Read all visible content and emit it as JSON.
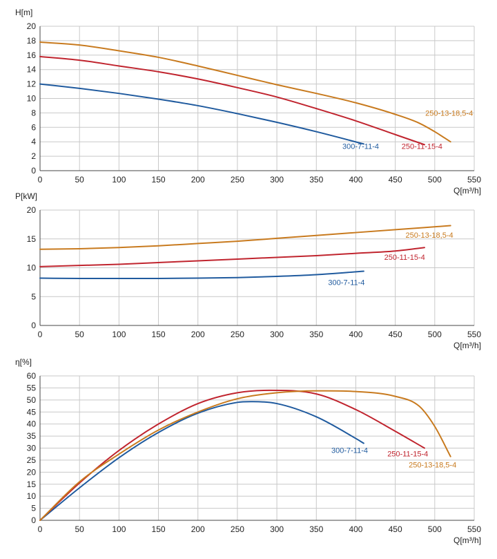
{
  "colors": {
    "300-7-11-4": "#1f5a9e",
    "250-11-15-4": "#c0242e",
    "250-13-18,5-4": "#c87a1e"
  },
  "chart_data": [
    {
      "type": "line",
      "ylabel": "H[m]",
      "xlabel": "Q[m³/h]",
      "xlim": [
        0,
        550
      ],
      "ylim": [
        0,
        20
      ],
      "xticks": [
        0,
        50,
        100,
        150,
        200,
        250,
        300,
        350,
        400,
        450,
        500,
        550
      ],
      "yticks": [
        0,
        2,
        4,
        6,
        8,
        10,
        12,
        14,
        16,
        18,
        20
      ],
      "grid": true,
      "series": [
        {
          "name": "300-7-11-4",
          "x": [
            0,
            50,
            100,
            150,
            200,
            250,
            300,
            350,
            410
          ],
          "y": [
            12.0,
            11.4,
            10.7,
            9.9,
            9.0,
            7.9,
            6.7,
            5.4,
            3.7
          ]
        },
        {
          "name": "250-11-15-4",
          "x": [
            0,
            50,
            100,
            150,
            200,
            250,
            300,
            350,
            400,
            450,
            487
          ],
          "y": [
            15.8,
            15.3,
            14.5,
            13.7,
            12.7,
            11.5,
            10.2,
            8.6,
            6.9,
            5.0,
            3.6
          ]
        },
        {
          "name": "250-13-18,5-4",
          "x": [
            0,
            50,
            100,
            150,
            200,
            250,
            300,
            350,
            400,
            450,
            480,
            500,
            520
          ],
          "y": [
            17.8,
            17.4,
            16.6,
            15.7,
            14.5,
            13.2,
            11.9,
            10.7,
            9.4,
            7.8,
            6.6,
            5.4,
            4.0
          ]
        }
      ],
      "labels": [
        {
          "text": "300-7-11-4",
          "x": 383,
          "y": 3.0,
          "series": "300-7-11-4"
        },
        {
          "text": "250-11-15-4",
          "x": 458,
          "y": 3.0,
          "series": "250-11-15-4"
        },
        {
          "text": "250-13-18,5-4",
          "x": 488,
          "y": 7.6,
          "series": "250-13-18,5-4"
        }
      ]
    },
    {
      "type": "line",
      "ylabel": "P[kW]",
      "xlabel": "Q[m³/h]",
      "xlim": [
        0,
        550
      ],
      "ylim": [
        0,
        20
      ],
      "xticks": [
        0,
        50,
        100,
        150,
        200,
        250,
        300,
        350,
        400,
        450,
        500,
        550
      ],
      "yticks": [
        0,
        5,
        10,
        15,
        20
      ],
      "grid": true,
      "series": [
        {
          "name": "300-7-11-4",
          "x": [
            0,
            50,
            100,
            150,
            200,
            250,
            300,
            350,
            410
          ],
          "y": [
            8.2,
            8.15,
            8.15,
            8.15,
            8.2,
            8.3,
            8.5,
            8.8,
            9.4
          ]
        },
        {
          "name": "250-11-15-4",
          "x": [
            0,
            50,
            100,
            150,
            200,
            250,
            300,
            350,
            400,
            450,
            487
          ],
          "y": [
            10.2,
            10.4,
            10.6,
            10.9,
            11.2,
            11.5,
            11.8,
            12.1,
            12.5,
            12.9,
            13.5
          ]
        },
        {
          "name": "250-13-18,5-4",
          "x": [
            0,
            50,
            100,
            150,
            200,
            250,
            300,
            350,
            400,
            450,
            520
          ],
          "y": [
            13.2,
            13.3,
            13.5,
            13.8,
            14.2,
            14.6,
            15.1,
            15.6,
            16.1,
            16.6,
            17.3
          ]
        }
      ],
      "labels": [
        {
          "text": "300-7-11-4",
          "x": 365,
          "y": 7.0,
          "series": "300-7-11-4"
        },
        {
          "text": "250-11-15-4",
          "x": 436,
          "y": 11.4,
          "series": "250-11-15-4"
        },
        {
          "text": "250-13-18,5-4",
          "x": 463,
          "y": 15.2,
          "series": "250-13-18,5-4"
        }
      ]
    },
    {
      "type": "line",
      "ylabel": "η[%]",
      "xlabel": "Q[m³/h]",
      "xlim": [
        0,
        550
      ],
      "ylim": [
        0,
        60
      ],
      "xticks": [
        0,
        50,
        100,
        150,
        200,
        250,
        300,
        350,
        400,
        450,
        500,
        550
      ],
      "yticks": [
        0,
        5,
        10,
        15,
        20,
        25,
        30,
        35,
        40,
        45,
        50,
        55,
        60
      ],
      "grid": true,
      "series": [
        {
          "name": "300-7-11-4",
          "x": [
            0,
            50,
            100,
            150,
            200,
            250,
            270,
            300,
            350,
            400,
            410
          ],
          "y": [
            0,
            13.5,
            26.0,
            36.5,
            44.5,
            49.0,
            49.3,
            48.5,
            43.0,
            34.0,
            32.0
          ]
        },
        {
          "name": "250-11-15-4",
          "x": [
            0,
            50,
            100,
            150,
            200,
            250,
            290,
            350,
            400,
            450,
            487
          ],
          "y": [
            0,
            15.5,
            29.0,
            40.0,
            48.5,
            53.0,
            54.0,
            52.5,
            46.0,
            37.0,
            30.0
          ]
        },
        {
          "name": "250-13-18,5-4",
          "x": [
            0,
            50,
            100,
            150,
            200,
            250,
            300,
            350,
            400,
            450,
            480,
            500,
            520
          ],
          "y": [
            0,
            16.0,
            27.5,
            37.5,
            45.0,
            50.5,
            53.0,
            53.8,
            53.5,
            51.5,
            47.5,
            39.0,
            26.5
          ]
        }
      ],
      "labels": [
        {
          "text": "300-7-11-4",
          "x": 369,
          "y": 28.0,
          "series": "300-7-11-4"
        },
        {
          "text": "250-11-15-4",
          "x": 440,
          "y": 26.5,
          "series": "250-11-15-4"
        },
        {
          "text": "250-13-18,5-4",
          "x": 467,
          "y": 22.0,
          "series": "250-13-18,5-4"
        }
      ]
    }
  ]
}
